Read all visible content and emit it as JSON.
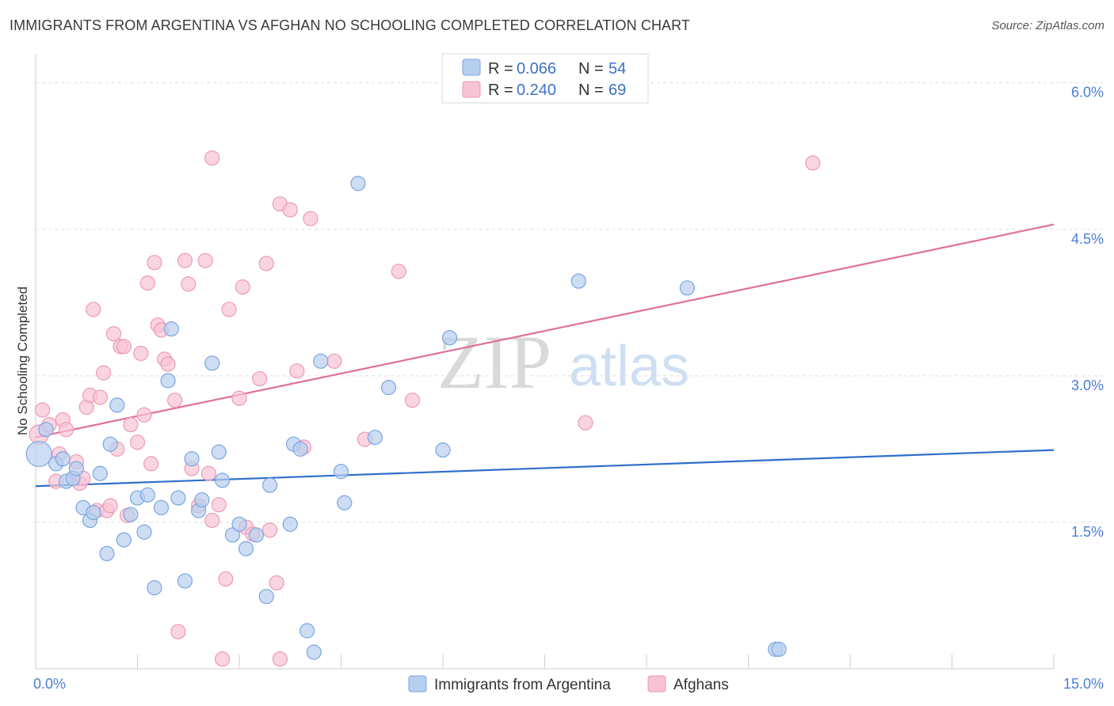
{
  "title": "IMMIGRANTS FROM ARGENTINA VS AFGHAN NO SCHOOLING COMPLETED CORRELATION CHART",
  "source": "Source: ZipAtlas.com",
  "watermark": {
    "zip": "ZIP",
    "atlas": "atlas"
  },
  "colors": {
    "blue_fill": "#b6cff0",
    "blue_stroke": "#7aa6e0",
    "blue_line": "#2f6fcc",
    "pink_fill": "#f8c3d4",
    "pink_stroke": "#ec9ab5",
    "pink_line": "#e0709a",
    "tick_text": "#4a7fd4",
    "grid": "#dddddd"
  },
  "legend": {
    "rows": [
      {
        "r_label": "R =",
        "r_value": "0.066",
        "n_label": "N =",
        "n_value": "54"
      },
      {
        "r_label": "R =",
        "r_value": "0.240",
        "n_label": "N =",
        "n_value": "69"
      }
    ]
  },
  "chart_data": {
    "type": "scatter",
    "title": "IMMIGRANTS FROM ARGENTINA VS AFGHAN NO SCHOOLING COMPLETED CORRELATION CHART",
    "xlabel": "",
    "ylabel": "No Schooling Completed",
    "xlim": [
      0.0,
      15.0
    ],
    "ylim": [
      0.0,
      6.2
    ],
    "x_tick_labels": [
      {
        "value": 0.0,
        "label": "0.0%"
      },
      {
        "value": 15.0,
        "label": "15.0%"
      }
    ],
    "y_tick_labels": [
      {
        "value": 1.5,
        "label": "1.5%"
      },
      {
        "value": 3.0,
        "label": "3.0%"
      },
      {
        "value": 4.5,
        "label": "4.5%"
      },
      {
        "value": 6.0,
        "label": "6.0%"
      }
    ],
    "series": [
      {
        "name": "Immigrants from Argentina",
        "color": "#b6cff0",
        "R": 0.066,
        "N": 54,
        "trend": {
          "x": [
            0.0,
            15.0
          ],
          "y": [
            1.87,
            2.24
          ]
        },
        "points": [
          [
            0.05,
            2.2
          ],
          [
            0.15,
            2.45
          ],
          [
            0.3,
            2.1
          ],
          [
            0.4,
            2.15
          ],
          [
            0.45,
            1.92
          ],
          [
            0.55,
            1.95
          ],
          [
            0.6,
            2.05
          ],
          [
            0.7,
            1.65
          ],
          [
            0.8,
            1.52
          ],
          [
            0.85,
            1.6
          ],
          [
            0.95,
            2.0
          ],
          [
            1.05,
            1.18
          ],
          [
            1.1,
            2.3
          ],
          [
            1.2,
            2.7
          ],
          [
            1.3,
            1.32
          ],
          [
            1.4,
            1.58
          ],
          [
            1.5,
            1.75
          ],
          [
            1.6,
            1.4
          ],
          [
            1.65,
            1.78
          ],
          [
            1.75,
            0.83
          ],
          [
            1.85,
            1.65
          ],
          [
            1.95,
            2.95
          ],
          [
            2.0,
            3.48
          ],
          [
            2.1,
            1.75
          ],
          [
            2.2,
            0.9
          ],
          [
            2.3,
            2.15
          ],
          [
            2.4,
            1.62
          ],
          [
            2.45,
            1.73
          ],
          [
            2.6,
            3.13
          ],
          [
            2.7,
            2.22
          ],
          [
            2.75,
            1.93
          ],
          [
            2.9,
            1.37
          ],
          [
            3.0,
            1.48
          ],
          [
            3.1,
            1.23
          ],
          [
            3.25,
            1.37
          ],
          [
            3.4,
            0.74
          ],
          [
            3.45,
            1.88
          ],
          [
            3.75,
            1.48
          ],
          [
            3.8,
            2.3
          ],
          [
            3.9,
            2.25
          ],
          [
            4.0,
            0.39
          ],
          [
            4.1,
            0.17
          ],
          [
            4.2,
            3.15
          ],
          [
            4.5,
            2.02
          ],
          [
            4.55,
            1.7
          ],
          [
            4.75,
            4.97
          ],
          [
            5.0,
            2.37
          ],
          [
            5.2,
            2.88
          ],
          [
            6.0,
            2.24
          ],
          [
            6.1,
            3.39
          ],
          [
            8.0,
            3.97
          ],
          [
            9.6,
            3.9
          ],
          [
            10.9,
            0.2
          ],
          [
            10.95,
            0.2
          ]
        ]
      },
      {
        "name": "Afghans",
        "color": "#f8c3d4",
        "R": 0.24,
        "N": 69,
        "trend": {
          "x": [
            0.0,
            15.0
          ],
          "y": [
            2.37,
            4.55
          ]
        },
        "points": [
          [
            0.05,
            2.4
          ],
          [
            0.1,
            2.65
          ],
          [
            0.2,
            2.5
          ],
          [
            0.3,
            1.92
          ],
          [
            0.35,
            2.2
          ],
          [
            0.4,
            2.55
          ],
          [
            0.45,
            2.45
          ],
          [
            0.55,
            1.95
          ],
          [
            0.6,
            2.12
          ],
          [
            0.65,
            1.9
          ],
          [
            0.7,
            1.95
          ],
          [
            0.75,
            2.68
          ],
          [
            0.8,
            2.8
          ],
          [
            0.85,
            3.68
          ],
          [
            0.9,
            1.62
          ],
          [
            0.95,
            2.78
          ],
          [
            1.0,
            3.03
          ],
          [
            1.05,
            1.62
          ],
          [
            1.1,
            1.67
          ],
          [
            1.15,
            3.43
          ],
          [
            1.2,
            2.25
          ],
          [
            1.25,
            3.3
          ],
          [
            1.3,
            3.3
          ],
          [
            1.35,
            1.57
          ],
          [
            1.4,
            2.5
          ],
          [
            1.5,
            2.32
          ],
          [
            1.55,
            3.23
          ],
          [
            1.6,
            2.6
          ],
          [
            1.65,
            3.95
          ],
          [
            1.7,
            2.1
          ],
          [
            1.75,
            4.16
          ],
          [
            1.8,
            3.52
          ],
          [
            1.85,
            3.47
          ],
          [
            1.9,
            3.17
          ],
          [
            1.95,
            3.12
          ],
          [
            2.05,
            2.75
          ],
          [
            2.1,
            0.38
          ],
          [
            2.2,
            4.18
          ],
          [
            2.25,
            3.94
          ],
          [
            2.3,
            2.05
          ],
          [
            2.4,
            1.67
          ],
          [
            2.5,
            4.18
          ],
          [
            2.55,
            2.0
          ],
          [
            2.6,
            1.52
          ],
          [
            2.6,
            5.23
          ],
          [
            2.7,
            1.68
          ],
          [
            2.75,
            0.1
          ],
          [
            2.8,
            0.92
          ],
          [
            2.85,
            3.68
          ],
          [
            3.0,
            2.77
          ],
          [
            3.05,
            3.91
          ],
          [
            3.1,
            1.45
          ],
          [
            3.2,
            1.38
          ],
          [
            3.3,
            2.97
          ],
          [
            3.4,
            4.15
          ],
          [
            3.45,
            1.42
          ],
          [
            3.55,
            0.88
          ],
          [
            3.6,
            0.1
          ],
          [
            3.6,
            4.76
          ],
          [
            3.75,
            4.7
          ],
          [
            3.85,
            3.05
          ],
          [
            3.95,
            2.27
          ],
          [
            4.05,
            4.61
          ],
          [
            4.4,
            3.15
          ],
          [
            4.85,
            2.35
          ],
          [
            5.35,
            4.07
          ],
          [
            5.55,
            2.75
          ],
          [
            8.1,
            2.52
          ],
          [
            11.45,
            5.18
          ]
        ]
      }
    ]
  },
  "bottom_legend": {
    "items": [
      "Immigrants from Argentina",
      "Afghans"
    ]
  }
}
